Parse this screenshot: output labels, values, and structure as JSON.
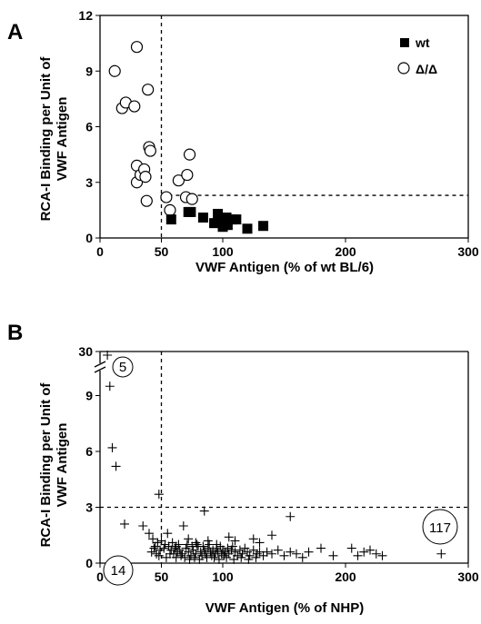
{
  "chart_data": [
    {
      "panel": "A",
      "type": "scatter",
      "title": "",
      "xlabel": "VWF Antigen (% of wt BL/6)",
      "ylabel": [
        "RCA-I Binding per Unit of",
        "VWF Antigen"
      ],
      "xlim": [
        0,
        300
      ],
      "ylim": [
        0,
        12
      ],
      "xticks": [
        0,
        50,
        100,
        200,
        300
      ],
      "yticks": [
        0,
        3,
        6,
        9,
        12
      ],
      "reference_lines": {
        "x": 50,
        "y": 2.3
      },
      "legend_position": "top-right",
      "series": [
        {
          "name": "wt",
          "marker": "filled-square",
          "points": [
            [
              58,
              1.0
            ],
            [
              72,
              1.4
            ],
            [
              74,
              1.4
            ],
            [
              84,
              1.1
            ],
            [
              93,
              0.8
            ],
            [
              96,
              1.3
            ],
            [
              99,
              0.9
            ],
            [
              100,
              0.6
            ],
            [
              103,
              1.1
            ],
            [
              104,
              0.7
            ],
            [
              108,
              1.0
            ],
            [
              111,
              1.0
            ],
            [
              120,
              0.5
            ],
            [
              133,
              0.65
            ]
          ]
        },
        {
          "name": "Δ/Δ",
          "marker": "open-circle",
          "points": [
            [
              12,
              9.0
            ],
            [
              18,
              7.0
            ],
            [
              21,
              7.3
            ],
            [
              28,
              7.1
            ],
            [
              30,
              10.3
            ],
            [
              30,
              3.9
            ],
            [
              30,
              3.0
            ],
            [
              33,
              3.4
            ],
            [
              36,
              3.7
            ],
            [
              37,
              3.3
            ],
            [
              38,
              2.0
            ],
            [
              39,
              8.0
            ],
            [
              40,
              4.9
            ],
            [
              41,
              4.7
            ],
            [
              54,
              2.2
            ],
            [
              57,
              1.5
            ],
            [
              64,
              3.1
            ],
            [
              70,
              2.2
            ],
            [
              71,
              3.4
            ],
            [
              73,
              4.5
            ],
            [
              75,
              2.1
            ]
          ]
        }
      ]
    },
    {
      "panel": "B",
      "type": "scatter",
      "title": "",
      "xlabel": "VWF Antigen (% of NHP)",
      "ylabel": [
        "RCA-I Binding per Unit of",
        "VWF Antigen"
      ],
      "xlim": [
        0,
        300
      ],
      "ylim": [
        0,
        30
      ],
      "axis_break": [
        10,
        29
      ],
      "xticks": [
        0,
        50,
        100,
        200,
        300
      ],
      "yticks": [
        0,
        3,
        6,
        9,
        30
      ],
      "reference_lines": {
        "x": 50,
        "y": 3
      },
      "counts": {
        "upper_left": "5",
        "lower_left": "14",
        "lower_right": "117"
      },
      "series": [
        {
          "marker": "plus",
          "points": [
            [
              6,
              29.5
            ],
            [
              8,
              9.5
            ],
            [
              10,
              6.2
            ],
            [
              13,
              5.2
            ],
            [
              48,
              3.7
            ],
            [
              20,
              2.1
            ],
            [
              35,
              2.0
            ],
            [
              40,
              1.6
            ],
            [
              43,
              1.3
            ],
            [
              47,
              1.1
            ],
            [
              50,
              1.2
            ],
            [
              55,
              1.6
            ],
            [
              62,
              0.9
            ],
            [
              68,
              2.0
            ],
            [
              72,
              1.3
            ],
            [
              78,
              1.1
            ],
            [
              85,
              2.8
            ],
            [
              88,
              1.2
            ],
            [
              95,
              1.0
            ],
            [
              105,
              1.4
            ],
            [
              110,
              1.2
            ],
            [
              125,
              1.3
            ],
            [
              130,
              1.1
            ],
            [
              140,
              1.5
            ],
            [
              155,
              2.5
            ],
            [
              45,
              0.9
            ],
            [
              52,
              0.8
            ],
            [
              58,
              0.7
            ],
            [
              60,
              0.5
            ],
            [
              63,
              0.6
            ],
            [
              65,
              0.7
            ],
            [
              67,
              0.5
            ],
            [
              70,
              0.8
            ],
            [
              72,
              0.6
            ],
            [
              74,
              0.4
            ],
            [
              76,
              0.7
            ],
            [
              78,
              0.5
            ],
            [
              80,
              0.9
            ],
            [
              82,
              0.6
            ],
            [
              83,
              0.4
            ],
            [
              85,
              0.7
            ],
            [
              86,
              0.5
            ],
            [
              88,
              0.8
            ],
            [
              90,
              0.6
            ],
            [
              91,
              0.4
            ],
            [
              92,
              0.7
            ],
            [
              94,
              0.5
            ],
            [
              95,
              0.8
            ],
            [
              96,
              0.6
            ],
            [
              98,
              0.9
            ],
            [
              99,
              0.5
            ],
            [
              100,
              0.7
            ],
            [
              101,
              0.4
            ],
            [
              102,
              0.6
            ],
            [
              104,
              0.8
            ],
            [
              105,
              0.5
            ],
            [
              107,
              0.7
            ],
            [
              108,
              0.9
            ],
            [
              110,
              0.6
            ],
            [
              112,
              0.4
            ],
            [
              114,
              0.7
            ],
            [
              116,
              0.5
            ],
            [
              118,
              0.8
            ],
            [
              120,
              0.6
            ],
            [
              122,
              0.4
            ],
            [
              125,
              0.7
            ],
            [
              128,
              0.5
            ],
            [
              130,
              0.6
            ],
            [
              133,
              0.4
            ],
            [
              136,
              0.6
            ],
            [
              140,
              0.5
            ],
            [
              145,
              0.7
            ],
            [
              150,
              0.4
            ],
            [
              155,
              0.6
            ],
            [
              160,
              0.5
            ],
            [
              165,
              0.3
            ],
            [
              170,
              0.6
            ],
            [
              180,
              0.8
            ],
            [
              190,
              0.4
            ],
            [
              205,
              0.8
            ],
            [
              210,
              0.4
            ],
            [
              215,
              0.6
            ],
            [
              220,
              0.7
            ],
            [
              225,
              0.5
            ],
            [
              230,
              0.4
            ],
            [
              42,
              0.6
            ],
            [
              46,
              0.5
            ],
            [
              48,
              0.4
            ],
            [
              54,
              0.3
            ],
            [
              57,
              0.5
            ],
            [
              62,
              0.3
            ],
            [
              66,
              0.4
            ],
            [
              69,
              0.3
            ],
            [
              73,
              0.2
            ],
            [
              77,
              0.3
            ],
            [
              81,
              0.2
            ],
            [
              87,
              0.3
            ],
            [
              93,
              0.3
            ],
            [
              97,
              0.2
            ],
            [
              103,
              0.3
            ],
            [
              109,
              0.2
            ],
            [
              115,
              0.3
            ],
            [
              121,
              0.2
            ],
            [
              127,
              0.3
            ],
            [
              44,
              0.8
            ],
            [
              49,
              0.7
            ],
            [
              53,
              1.0
            ],
            [
              56,
              0.9
            ],
            [
              59,
              1.1
            ],
            [
              61,
              0.8
            ],
            [
              64,
              1.0
            ],
            [
              71,
              1.0
            ],
            [
              75,
              0.9
            ],
            [
              79,
              1.0
            ],
            [
              84,
              0.9
            ],
            [
              89,
              1.0
            ],
            [
              278,
              0.5
            ]
          ]
        }
      ]
    }
  ]
}
